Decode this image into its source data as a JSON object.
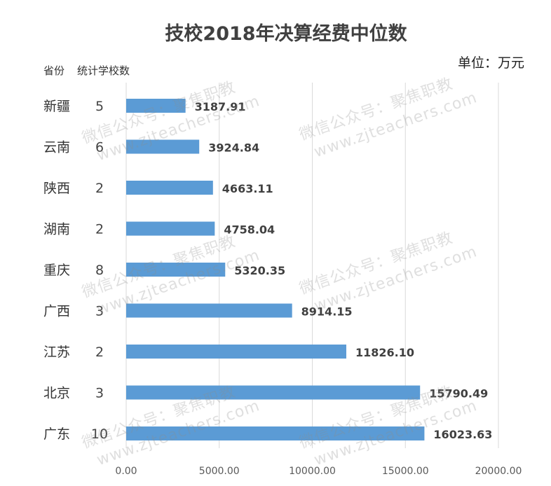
{
  "chart_data": {
    "type": "bar",
    "orientation": "horizontal",
    "title": "技校2018年决算经费中位数",
    "unit_label": "单位：万元",
    "column_headers": {
      "province": "省份",
      "count": "统计学校数"
    },
    "categories": [
      "新疆",
      "云南",
      "陕西",
      "湖南",
      "重庆",
      "广西",
      "江苏",
      "北京",
      "广东"
    ],
    "school_counts": [
      "5",
      "6",
      "2",
      "2",
      "8",
      "3",
      "2",
      "3",
      "10"
    ],
    "values": [
      3187.91,
      3924.84,
      4663.11,
      4758.04,
      5320.35,
      8914.15,
      11826.1,
      15790.49,
      16023.63
    ],
    "value_labels": [
      "3187.91",
      "3924.84",
      "4663.11",
      "4758.04",
      "5320.35",
      "8914.15",
      "11826.10",
      "15790.49",
      "16023.63"
    ],
    "xlim": [
      0,
      20000
    ],
    "x_ticks": [
      0,
      5000,
      10000,
      15000,
      20000
    ],
    "x_tick_labels": [
      "0.00",
      "5000.00",
      "10000.00",
      "15000.00",
      "20000.00"
    ],
    "grid": "vertical",
    "bar_color": "#5b9bd5",
    "watermark": [
      "微信公众号：聚焦职教",
      "www.zjteachers.com"
    ]
  }
}
